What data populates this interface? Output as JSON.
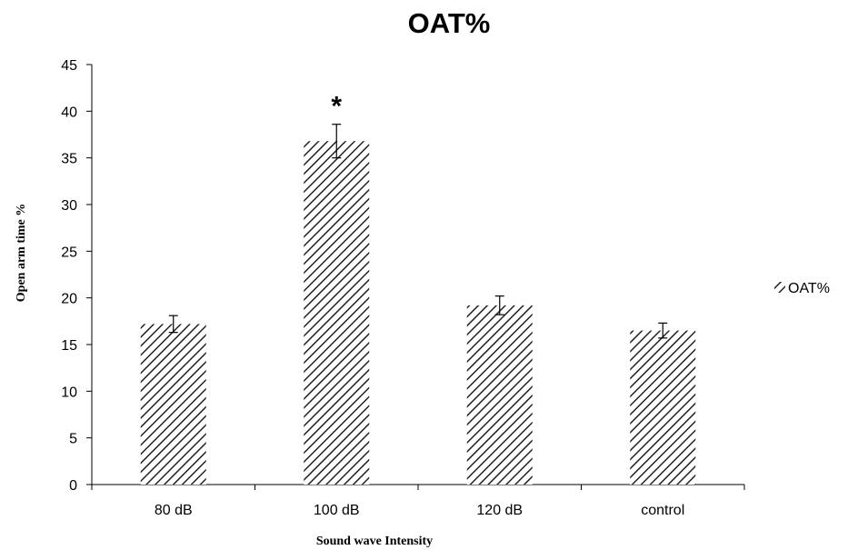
{
  "chart_data": {
    "type": "bar",
    "title": "OAT%",
    "xlabel": "Sound wave Intensity",
    "ylabel": "Open arm time %",
    "categories": [
      "80 dB",
      "100 dB",
      "120 dB",
      "control"
    ],
    "series": [
      {
        "name": "OAT%",
        "values": [
          17.2,
          36.8,
          19.2,
          16.5
        ],
        "errors": [
          0.9,
          1.8,
          1.0,
          0.8
        ]
      }
    ],
    "ylim": [
      0,
      45
    ],
    "yticks": [
      0,
      5,
      10,
      15,
      20,
      25,
      30,
      35,
      40,
      45
    ],
    "grid": false,
    "legend_position": "right",
    "annotations": [
      {
        "category": "100 dB",
        "text": "*"
      }
    ],
    "colors": {
      "bar_hatch": "#222222",
      "bar_fill": "#ffffff",
      "axis": "#000000"
    }
  }
}
